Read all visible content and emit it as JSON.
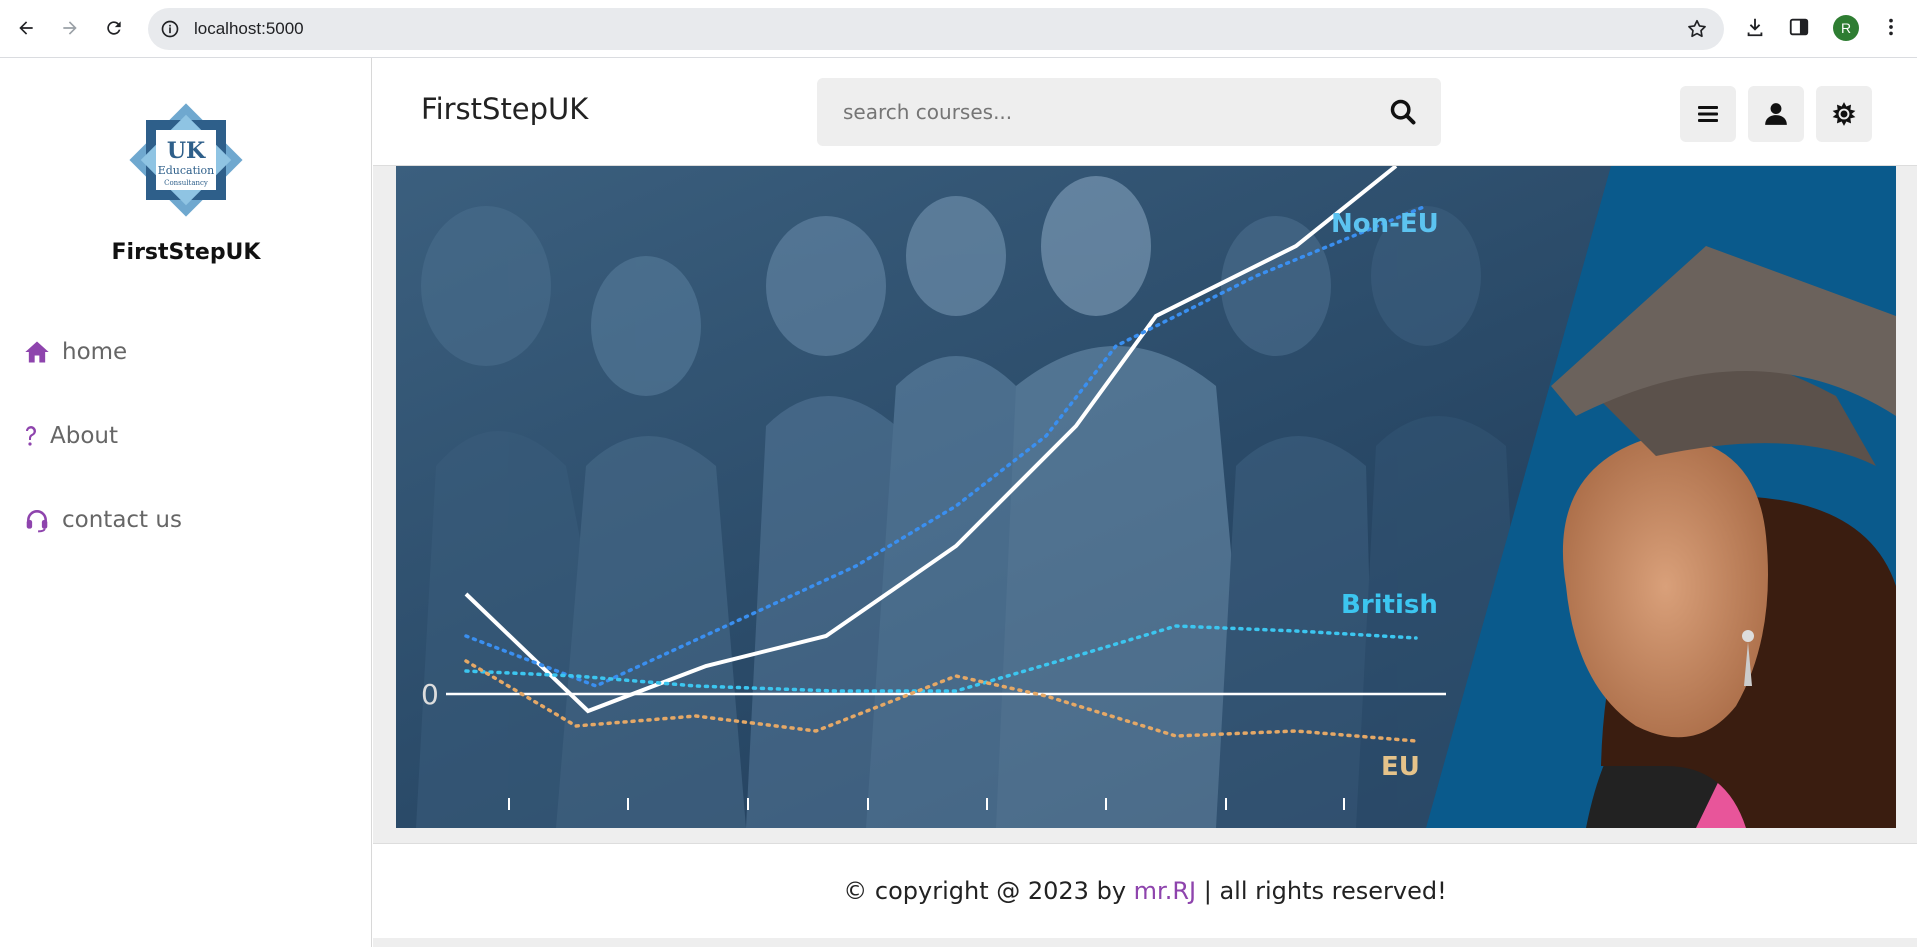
{
  "browser": {
    "url": "localhost:5000",
    "profile_initial": "R"
  },
  "sidebar": {
    "logo": {
      "text_uk": "UK",
      "text_education": "Education",
      "text_consultancy": "Consultancy"
    },
    "brand": "FirstStepUK",
    "items": [
      {
        "label": "home",
        "icon": "home-icon"
      },
      {
        "label": "About",
        "icon": "question-icon"
      },
      {
        "label": "contact us",
        "icon": "headset-icon"
      }
    ]
  },
  "header": {
    "title": "FirstStepUK",
    "search_placeholder": "search courses..."
  },
  "hero": {
    "labels": {
      "non_eu": "Non-EU",
      "british": "British",
      "eu": "EU",
      "zero": "0"
    }
  },
  "footer": {
    "prefix": "© copyright @ 2023 by ",
    "author": "mr.RJ",
    "suffix": " | all rights reserved!"
  },
  "colors": {
    "accent": "#8e44ad",
    "hero_dark": "#1d3a57",
    "hero_blue": "#0a5a8c"
  }
}
